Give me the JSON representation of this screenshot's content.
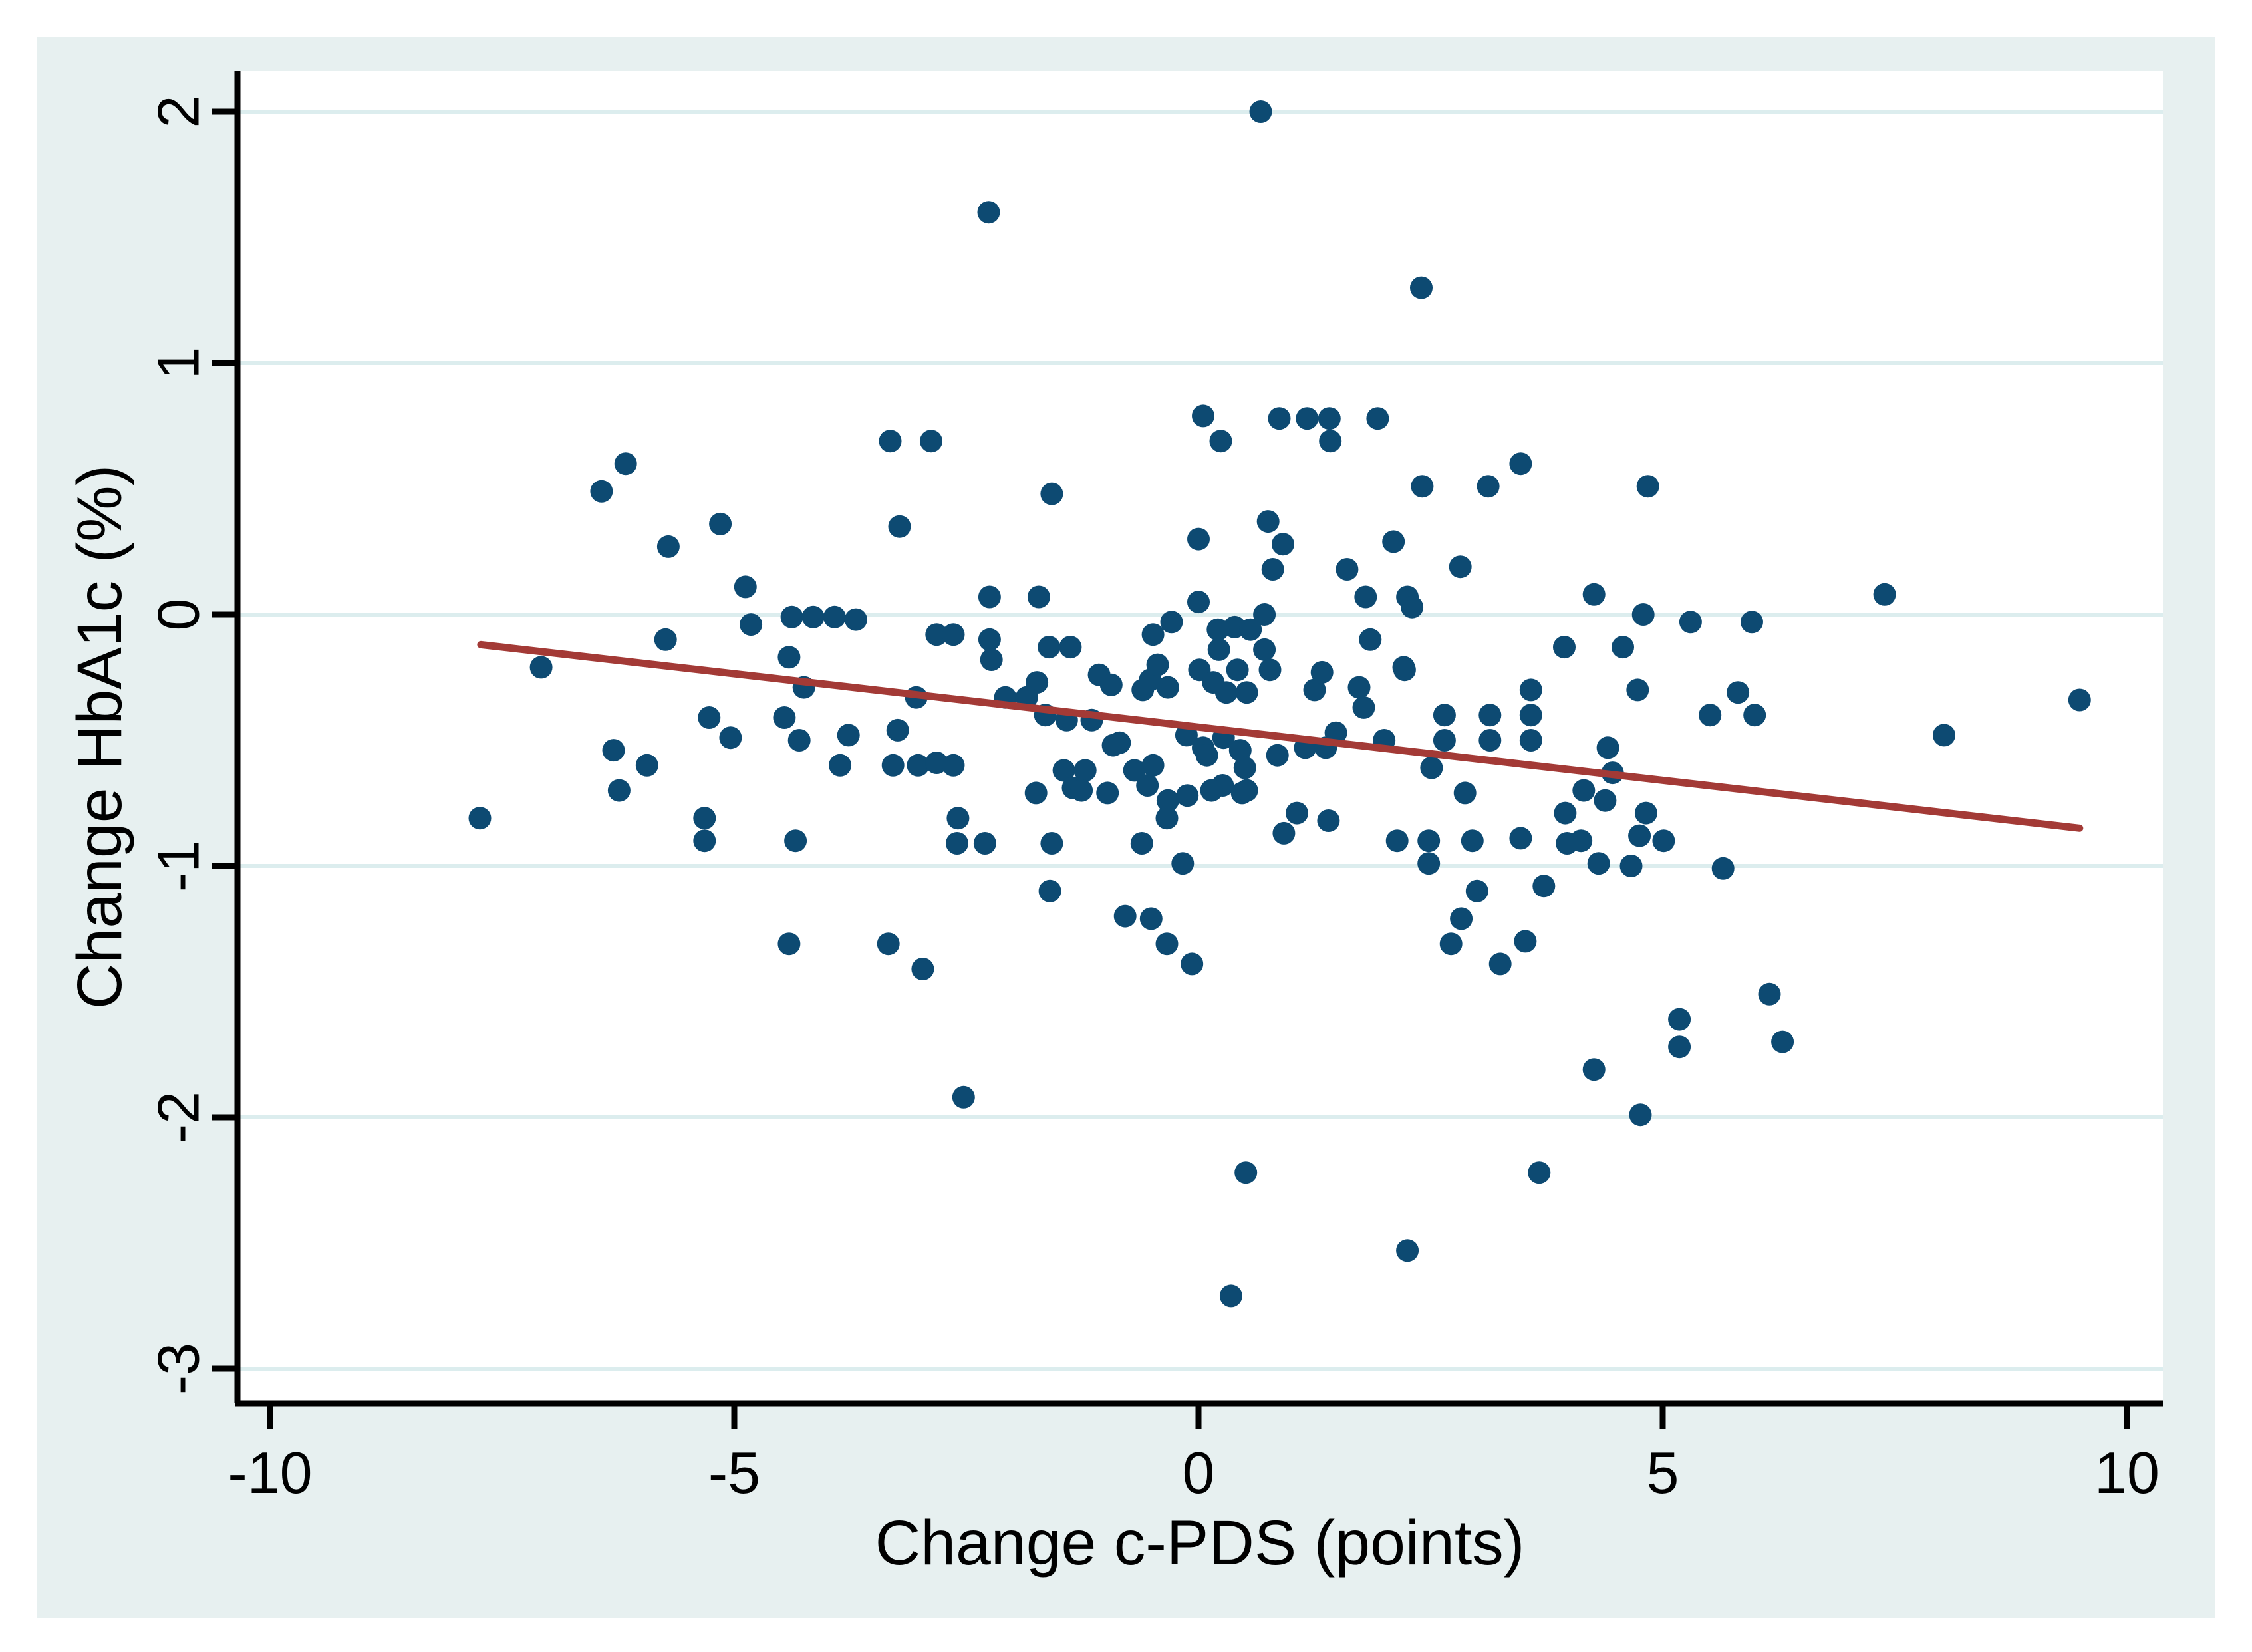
{
  "chart_data": {
    "type": "scatter",
    "title": "",
    "xlabel": "Change c-PDS (points)",
    "ylabel": "Change HbA1c (%)",
    "xlim": [
      -10.35,
      10.39
    ],
    "ylim": [
      -3.14,
      2.16
    ],
    "x_ticks": [
      -10,
      -5,
      0,
      5,
      10
    ],
    "x_tick_labels": [
      "-10",
      "-5",
      "0",
      "5",
      "10"
    ],
    "y_ticks": [
      2,
      1,
      0,
      -1,
      -2,
      -3
    ],
    "y_tick_labels": [
      "2",
      "1",
      "0",
      "-1",
      "-2",
      "-3"
    ],
    "grid": "horizontal-only",
    "legend": "none",
    "marker": "filled-circle",
    "colors": {
      "canvas_background": "#e7f0f0",
      "plot_background": "#ffffff",
      "gridline": "#dcedee",
      "axis": "#000000",
      "point": "#0d4a72",
      "fit_line": "#a33a36"
    },
    "fit_line": {
      "x1": -7.73,
      "y1": -0.12,
      "x2": 9.49,
      "y2": -0.85
    },
    "points": [
      [
        0.67,
        2.0
      ],
      [
        -2.26,
        1.6
      ],
      [
        2.4,
        1.3
      ],
      [
        -3.32,
        0.69
      ],
      [
        -2.88,
        0.69
      ],
      [
        -6.43,
        0.49
      ],
      [
        -6.17,
        0.6
      ],
      [
        0.05,
        0.79
      ],
      [
        0.24,
        0.69
      ],
      [
        0.87,
        0.78
      ],
      [
        1.17,
        0.78
      ],
      [
        1.41,
        0.78
      ],
      [
        1.42,
        0.69
      ],
      [
        1.93,
        0.78
      ],
      [
        3.47,
        0.6
      ],
      [
        2.41,
        0.51
      ],
      [
        3.12,
        0.51
      ],
      [
        4.84,
        0.51
      ],
      [
        -1.58,
        0.48
      ],
      [
        -5.71,
        0.27
      ],
      [
        -5.15,
        0.36
      ],
      [
        -3.22,
        0.35
      ],
      [
        0.75,
        0.37
      ],
      [
        0.91,
        0.28
      ],
      [
        2.1,
        0.29
      ],
      [
        0.0,
        0.3
      ],
      [
        0.8,
        0.18
      ],
      [
        1.6,
        0.18
      ],
      [
        2.82,
        0.19
      ],
      [
        -4.88,
        0.11
      ],
      [
        -2.25,
        0.07
      ],
      [
        -1.72,
        0.07
      ],
      [
        1.8,
        0.07
      ],
      [
        2.25,
        0.07
      ],
      [
        4.26,
        0.08
      ],
      [
        7.39,
        0.08
      ],
      [
        2.3,
        0.03
      ],
      [
        0.71,
        0.0
      ],
      [
        4.79,
        0.0
      ],
      [
        -0.29,
        -0.03
      ],
      [
        0.0,
        0.05
      ],
      [
        -4.82,
        -0.04
      ],
      [
        0.39,
        -0.05
      ],
      [
        -4.38,
        -0.01
      ],
      [
        -4.15,
        -0.01
      ],
      [
        -3.92,
        -0.01
      ],
      [
        -3.69,
        -0.02
      ],
      [
        5.3,
        -0.03
      ],
      [
        5.96,
        -0.03
      ],
      [
        0.21,
        -0.06
      ],
      [
        0.56,
        -0.06
      ],
      [
        -5.74,
        -0.1
      ],
      [
        -2.82,
        -0.08
      ],
      [
        -2.64,
        -0.08
      ],
      [
        -2.25,
        -0.1
      ],
      [
        -0.49,
        -0.08
      ],
      [
        1.85,
        -0.1
      ],
      [
        3.94,
        -0.13
      ],
      [
        4.57,
        -0.13
      ],
      [
        -1.61,
        -0.13
      ],
      [
        -1.38,
        -0.13
      ],
      [
        0.22,
        -0.14
      ],
      [
        0.71,
        -0.14
      ],
      [
        -4.41,
        -0.17
      ],
      [
        -2.23,
        -0.18
      ],
      [
        -7.08,
        -0.21
      ],
      [
        2.21,
        -0.21
      ],
      [
        -1.74,
        -0.27
      ],
      [
        -1.07,
        -0.24
      ],
      [
        -0.94,
        -0.28
      ],
      [
        -0.52,
        -0.26
      ],
      [
        -0.44,
        -0.2
      ],
      [
        -0.33,
        -0.29
      ],
      [
        -0.6,
        -0.3
      ],
      [
        0.01,
        -0.22
      ],
      [
        0.42,
        -0.22
      ],
      [
        0.77,
        -0.22
      ],
      [
        1.25,
        -0.3
      ],
      [
        1.33,
        -0.23
      ],
      [
        2.22,
        -0.22
      ],
      [
        0.16,
        -0.27
      ],
      [
        0.3,
        -0.31
      ],
      [
        0.52,
        -0.31
      ],
      [
        -4.25,
        -0.29
      ],
      [
        -2.08,
        -0.33
      ],
      [
        -1.85,
        -0.33
      ],
      [
        -3.04,
        -0.33
      ],
      [
        5.81,
        -0.31
      ],
      [
        9.49,
        -0.34
      ],
      [
        4.73,
        -0.3
      ],
      [
        3.58,
        -0.3
      ],
      [
        1.73,
        -0.29
      ],
      [
        -1.65,
        -0.4
      ],
      [
        -1.42,
        -0.42
      ],
      [
        -1.15,
        -0.42
      ],
      [
        -3.24,
        -0.46
      ],
      [
        -4.46,
        -0.41
      ],
      [
        -5.27,
        -0.41
      ],
      [
        1.48,
        -0.47
      ],
      [
        1.78,
        -0.37
      ],
      [
        2.65,
        -0.4
      ],
      [
        3.14,
        -0.4
      ],
      [
        3.58,
        -0.4
      ],
      [
        5.51,
        -0.4
      ],
      [
        5.99,
        -0.4
      ],
      [
        -0.92,
        -0.52
      ],
      [
        -0.85,
        -0.51
      ],
      [
        -4.3,
        -0.5
      ],
      [
        -3.77,
        -0.48
      ],
      [
        -5.04,
        -0.49
      ],
      [
        0.05,
        -0.53
      ],
      [
        0.27,
        -0.49
      ],
      [
        -0.13,
        -0.48
      ],
      [
        0.45,
        -0.54
      ],
      [
        0.85,
        -0.56
      ],
      [
        1.15,
        -0.53
      ],
      [
        1.37,
        -0.53
      ],
      [
        2.0,
        -0.5
      ],
      [
        2.65,
        -0.5
      ],
      [
        3.14,
        -0.5
      ],
      [
        3.58,
        -0.5
      ],
      [
        8.03,
        -0.48
      ],
      [
        -6.3,
        -0.54
      ],
      [
        4.41,
        -0.53
      ],
      [
        0.09,
        -0.56
      ],
      [
        -5.94,
        -0.6
      ],
      [
        -3.86,
        -0.6
      ],
      [
        -3.29,
        -0.6
      ],
      [
        -3.02,
        -0.6
      ],
      [
        -2.82,
        -0.59
      ],
      [
        -2.64,
        -0.6
      ],
      [
        -1.45,
        -0.62
      ],
      [
        -1.22,
        -0.62
      ],
      [
        -0.69,
        -0.62
      ],
      [
        -0.49,
        -0.6
      ],
      [
        0.5,
        -0.61
      ],
      [
        2.51,
        -0.61
      ],
      [
        4.46,
        -0.63
      ],
      [
        -1.75,
        -0.71
      ],
      [
        -1.35,
        -0.69
      ],
      [
        -1.26,
        -0.7
      ],
      [
        -0.98,
        -0.71
      ],
      [
        -0.55,
        -0.68
      ],
      [
        -0.33,
        -0.74
      ],
      [
        -0.12,
        -0.72
      ],
      [
        0.26,
        -0.68
      ],
      [
        0.47,
        -0.71
      ],
      [
        0.14,
        -0.7
      ],
      [
        0.52,
        -0.7
      ],
      [
        -6.24,
        -0.7
      ],
      [
        2.87,
        -0.71
      ],
      [
        4.15,
        -0.7
      ],
      [
        4.38,
        -0.74
      ],
      [
        1.06,
        -0.79
      ],
      [
        0.92,
        -0.87
      ],
      [
        1.4,
        -0.82
      ],
      [
        3.95,
        -0.79
      ],
      [
        4.82,
        -0.79
      ],
      [
        -2.59,
        -0.81
      ],
      [
        -0.34,
        -0.81
      ],
      [
        -5.32,
        -0.81
      ],
      [
        -7.74,
        -0.81
      ],
      [
        -4.34,
        -0.9
      ],
      [
        -2.6,
        -0.91
      ],
      [
        -2.3,
        -0.91
      ],
      [
        -1.58,
        -0.91
      ],
      [
        -0.61,
        -0.91
      ],
      [
        2.14,
        -0.9
      ],
      [
        2.48,
        -0.9
      ],
      [
        2.95,
        -0.9
      ],
      [
        3.47,
        -0.89
      ],
      [
        3.97,
        -0.91
      ],
      [
        4.12,
        -0.9
      ],
      [
        4.75,
        -0.88
      ],
      [
        5.01,
        -0.9
      ],
      [
        -5.32,
        -0.9
      ],
      [
        2.48,
        -0.99
      ],
      [
        4.31,
        -0.99
      ],
      [
        -0.17,
        -0.99
      ],
      [
        4.66,
        -1.0
      ],
      [
        5.65,
        -1.01
      ],
      [
        -1.6,
        -1.1
      ],
      [
        3.0,
        -1.1
      ],
      [
        3.72,
        -1.08
      ],
      [
        -0.79,
        -1.2
      ],
      [
        -0.51,
        -1.21
      ],
      [
        2.83,
        -1.21
      ],
      [
        -4.41,
        -1.31
      ],
      [
        -3.34,
        -1.31
      ],
      [
        -0.34,
        -1.31
      ],
      [
        2.72,
        -1.31
      ],
      [
        3.52,
        -1.3
      ],
      [
        3.25,
        -1.39
      ],
      [
        -0.07,
        -1.39
      ],
      [
        -2.97,
        -1.41
      ],
      [
        6.15,
        -1.51
      ],
      [
        5.18,
        -1.61
      ],
      [
        6.29,
        -1.7
      ],
      [
        5.18,
        -1.72
      ],
      [
        -2.53,
        -1.92
      ],
      [
        4.76,
        -1.99
      ],
      [
        4.26,
        -1.81
      ],
      [
        0.51,
        -2.22
      ],
      [
        3.67,
        -2.22
      ],
      [
        2.25,
        -2.53
      ],
      [
        0.35,
        -2.71
      ]
    ]
  }
}
